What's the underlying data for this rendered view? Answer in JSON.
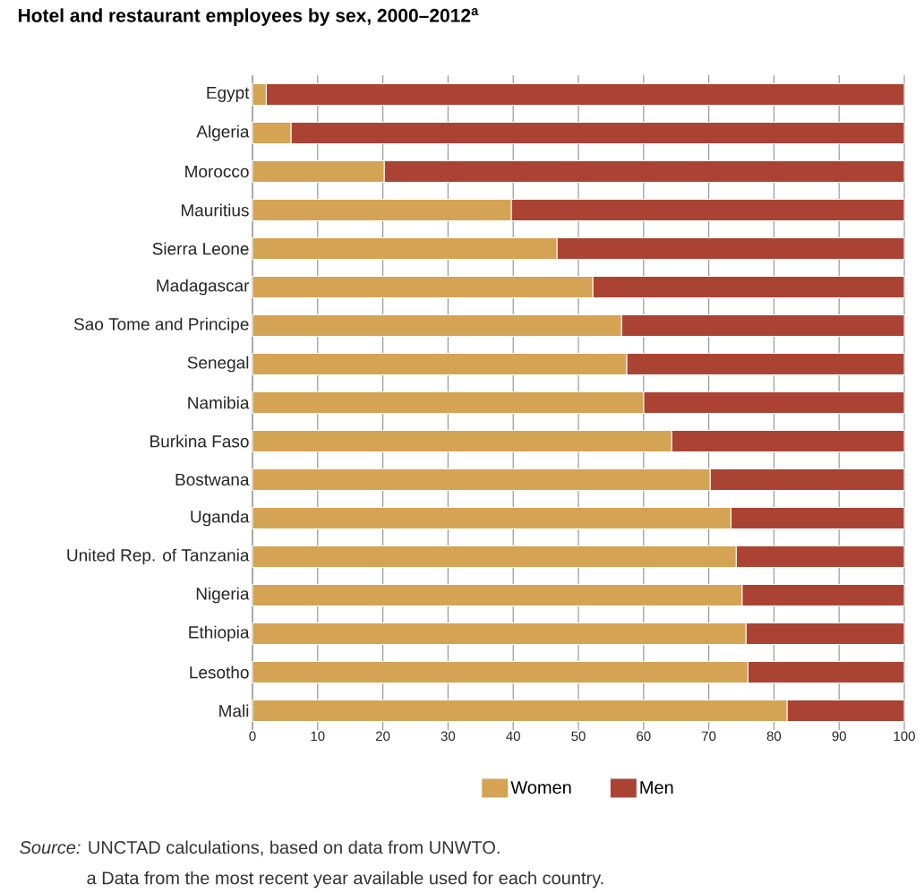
{
  "chart_data": {
    "type": "bar",
    "orientation": "horizontal",
    "stacked": true,
    "title": "Hotel and restaurant employees by sex, 2000–2012$^{a}$",
    "categories": [
      "Egypt",
      "Algeria",
      "Morocco",
      "Mauritius",
      "Sierra Leone",
      "Madagascar",
      "Sao Tome and Principe",
      "Senegal",
      "Namibia",
      "Burkina Faso",
      "Bostwana",
      "Uganda",
      "United Rep. of Tanzania",
      "Nigeria",
      "Ethiopia",
      "Lesotho",
      "Mali"
    ],
    "series": [
      {
        "name": "Women",
        "color": "#d4a353",
        "values": [
          2.1,
          5.9,
          20.2,
          39.7,
          46.7,
          52.2,
          56.6,
          57.4,
          60.0,
          64.3,
          70.2,
          73.4,
          74.2,
          75.1,
          75.7,
          76.0,
          82.0
        ]
      },
      {
        "name": "Men",
        "color": "#ab4334",
        "values": [
          97.9,
          94.1,
          79.8,
          60.3,
          53.3,
          47.8,
          43.4,
          42.6,
          40.0,
          35.7,
          29.8,
          26.6,
          25.8,
          24.9,
          24.3,
          24.0,
          18.0
        ]
      }
    ],
    "xlim": [
      0,
      100
    ],
    "xticks": [
      0,
      10,
      20,
      30,
      40,
      50,
      60,
      70,
      80,
      90,
      100
    ],
    "grid": "x",
    "legend": "bottom",
    "annotations": [
      "*Source:* UNCTAD calculations, based on data from UNWTO.",
      "a Data from the most recent year available used for each country."
    ]
  }
}
